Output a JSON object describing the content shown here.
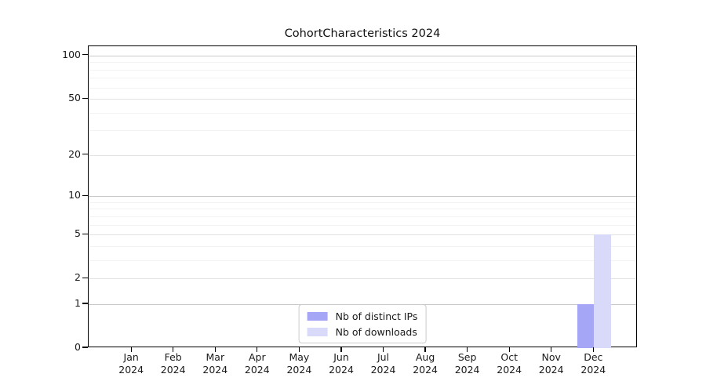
{
  "chart_data": {
    "type": "bar",
    "title": "CohortCharacteristics 2024",
    "categories": [
      {
        "month": "Jan",
        "year": "2024"
      },
      {
        "month": "Feb",
        "year": "2024"
      },
      {
        "month": "Mar",
        "year": "2024"
      },
      {
        "month": "Apr",
        "year": "2024"
      },
      {
        "month": "May",
        "year": "2024"
      },
      {
        "month": "Jun",
        "year": "2024"
      },
      {
        "month": "Jul",
        "year": "2024"
      },
      {
        "month": "Aug",
        "year": "2024"
      },
      {
        "month": "Sep",
        "year": "2024"
      },
      {
        "month": "Oct",
        "year": "2024"
      },
      {
        "month": "Nov",
        "year": "2024"
      },
      {
        "month": "Dec",
        "year": "2024"
      }
    ],
    "series": [
      {
        "name": "Nb of distinct IPs",
        "color": "#a6a6f7",
        "values": [
          0,
          0,
          0,
          0,
          0,
          0,
          0,
          0,
          0,
          0,
          0,
          1
        ]
      },
      {
        "name": "Nb of downloads",
        "color": "#d9d9f9",
        "values": [
          0,
          0,
          0,
          0,
          0,
          0,
          0,
          0,
          0,
          0,
          0,
          5
        ]
      }
    ],
    "yscale": "log1p",
    "yticks": [
      0,
      1,
      2,
      5,
      10,
      20,
      50,
      100
    ],
    "yminorticks": [
      3,
      4,
      6,
      7,
      8,
      9,
      30,
      40,
      60,
      70,
      80,
      90
    ],
    "ylim": [
      0,
      116
    ],
    "xlim": [
      -1.03,
      12.04
    ],
    "bar_width": 0.4,
    "bar_offsets": [
      -0.2,
      0.2
    ],
    "grid": true,
    "legend_position": "lower center",
    "colors": {
      "spine": "#000000",
      "grid_major": "#c9c9c9",
      "grid_mid": "#e2e2e2",
      "grid_minor": "#f3f3f3",
      "legend_border": "#cbcbcb",
      "background": "#ffffff"
    }
  }
}
